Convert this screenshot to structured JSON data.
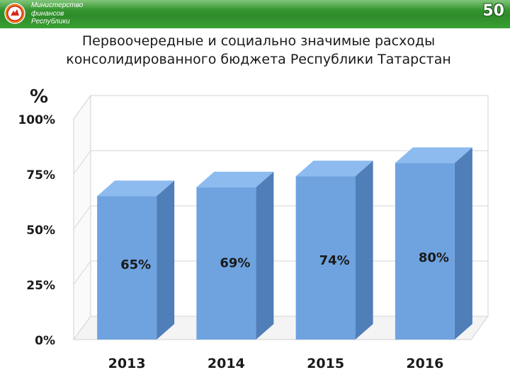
{
  "header": {
    "ministry_lines": [
      "Министерство",
      "финансов",
      "Республики"
    ],
    "page_number": "50",
    "accent_color": "#2e8b2a"
  },
  "title_lines": [
    "Первоочередные и социально значимые расходы",
    "консолидированного бюджета Республики Татарстан"
  ],
  "chart_data": {
    "type": "bar",
    "title": "Первоочередные и социально значимые расходы консолидированного бюджета Республики Татарстан",
    "ylabel": "%",
    "xlabel": "",
    "categories": [
      "2013",
      "2014",
      "2015",
      "2016"
    ],
    "values": [
      65,
      69,
      74,
      80
    ],
    "data_labels": [
      "65%",
      "69%",
      "74%",
      "80%"
    ],
    "ylim": [
      0,
      100
    ],
    "yticks": [
      0,
      25,
      50,
      75,
      100
    ],
    "ytick_labels": [
      "0%",
      "25%",
      "50%",
      "75%",
      "100%"
    ],
    "grid": true,
    "style": "3d",
    "bar_color": "#6ea3e0"
  }
}
